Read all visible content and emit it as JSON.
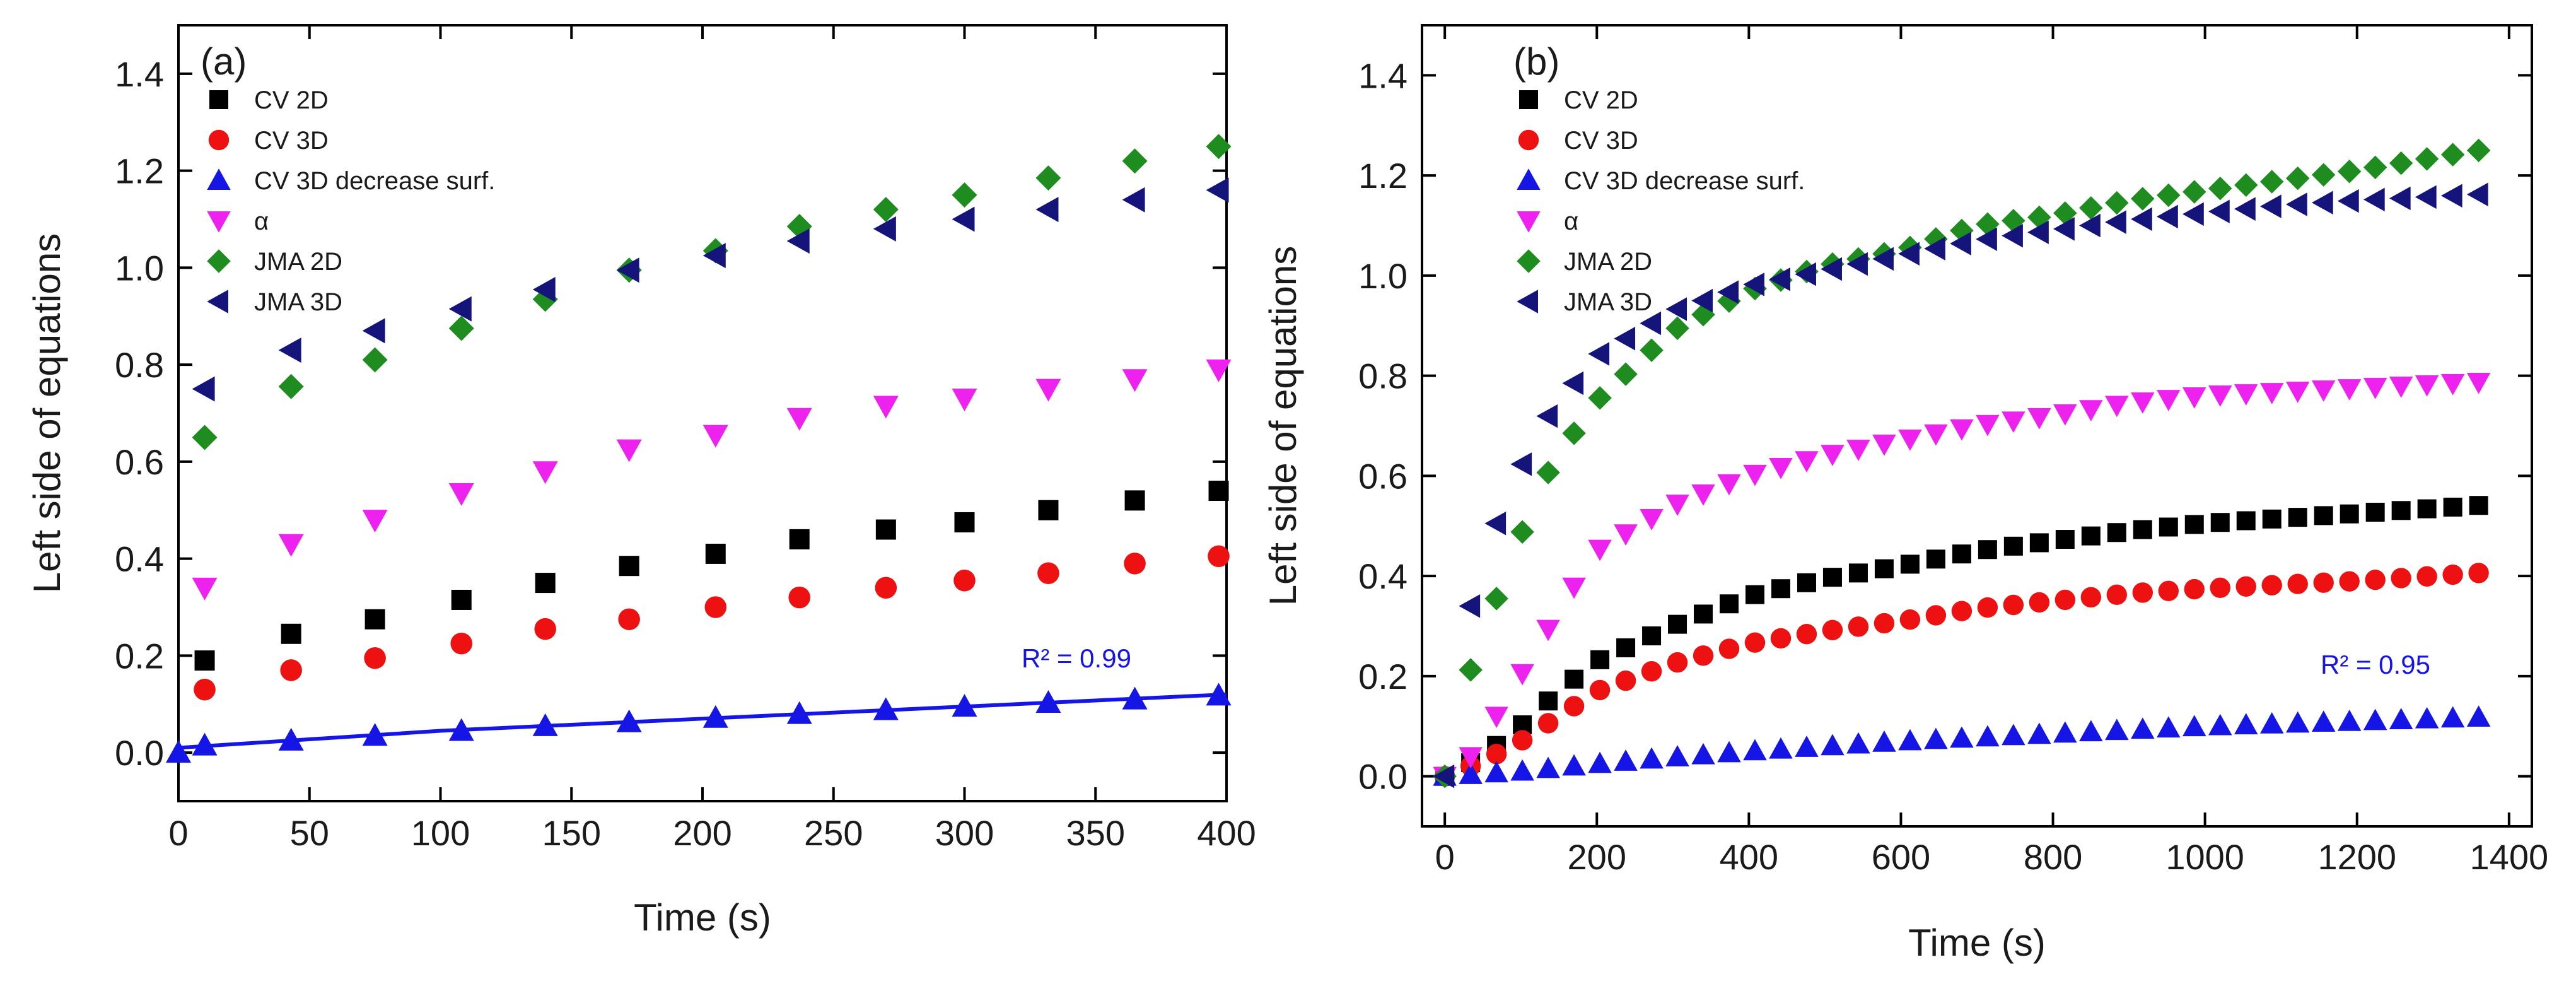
{
  "chart_data": [
    {
      "type": "scatter",
      "panel_label": "(a)",
      "xlabel": "Time (s)",
      "ylabel": "Left side of equations",
      "xlim": [
        0,
        400
      ],
      "ylim": [
        -0.1,
        1.5
      ],
      "xticks": [
        0,
        50,
        100,
        150,
        200,
        250,
        300,
        350,
        400
      ],
      "yticks": [
        0.0,
        0.2,
        0.4,
        0.6,
        0.8,
        1.0,
        1.2,
        1.4
      ],
      "legend_position": "top-left",
      "annotation": {
        "text": "R² = 0.99",
        "color": "#1515e6"
      },
      "fit": {
        "series": "CV 3D decrease surf.",
        "x": [
          0,
          100,
          200,
          300,
          400
        ],
        "y": [
          0.01,
          0.045,
          0.07,
          0.095,
          0.12
        ]
      },
      "series": [
        {
          "name": "CV 2D",
          "marker": "square",
          "color": "#000000",
          "x": [
            10,
            43,
            75,
            108,
            140,
            172,
            205,
            237,
            270,
            300,
            332,
            365,
            397
          ],
          "y": [
            0.19,
            0.245,
            0.275,
            0.315,
            0.35,
            0.385,
            0.41,
            0.44,
            0.46,
            0.475,
            0.5,
            0.52,
            0.54
          ]
        },
        {
          "name": "CV 3D",
          "marker": "circle",
          "color": "#ee1111",
          "x": [
            10,
            43,
            75,
            108,
            140,
            172,
            205,
            237,
            270,
            300,
            332,
            365,
            397
          ],
          "y": [
            0.13,
            0.17,
            0.195,
            0.225,
            0.255,
            0.275,
            0.3,
            0.32,
            0.34,
            0.355,
            0.37,
            0.39,
            0.405
          ]
        },
        {
          "name": "CV 3D decrease surf.",
          "marker": "triangle-up",
          "color": "#1515e6",
          "x": [
            0,
            10,
            43,
            75,
            108,
            140,
            172,
            205,
            237,
            270,
            300,
            332,
            365,
            397
          ],
          "y": [
            0.0,
            0.015,
            0.025,
            0.035,
            0.045,
            0.055,
            0.063,
            0.072,
            0.08,
            0.088,
            0.095,
            0.103,
            0.11,
            0.118
          ]
        },
        {
          "name": "α",
          "marker": "triangle-down",
          "color": "#ee22ee",
          "x": [
            10,
            43,
            75,
            108,
            140,
            172,
            205,
            237,
            270,
            300,
            332,
            365,
            397
          ],
          "y": [
            0.34,
            0.43,
            0.48,
            0.535,
            0.58,
            0.625,
            0.655,
            0.69,
            0.715,
            0.73,
            0.75,
            0.77,
            0.79
          ]
        },
        {
          "name": "JMA 2D",
          "marker": "diamond",
          "color": "#1e8c1e",
          "x": [
            10,
            43,
            75,
            108,
            140,
            172,
            205,
            237,
            270,
            300,
            332,
            365,
            397
          ],
          "y": [
            0.65,
            0.755,
            0.81,
            0.875,
            0.935,
            0.995,
            1.035,
            1.085,
            1.12,
            1.15,
            1.185,
            1.22,
            1.25
          ]
        },
        {
          "name": "JMA 3D",
          "marker": "triangle-left",
          "color": "#14147a",
          "x": [
            10,
            43,
            75,
            108,
            140,
            172,
            205,
            237,
            270,
            300,
            332,
            365,
            397
          ],
          "y": [
            0.75,
            0.83,
            0.87,
            0.915,
            0.955,
            0.995,
            1.025,
            1.055,
            1.08,
            1.1,
            1.12,
            1.14,
            1.16
          ]
        }
      ]
    },
    {
      "type": "scatter",
      "panel_label": "(b)",
      "xlabel": "Time (s)",
      "ylabel": "Left side of equations",
      "xlim": [
        -30,
        1430
      ],
      "ylim": [
        -0.1,
        1.5
      ],
      "xticks": [
        0,
        200,
        400,
        600,
        800,
        1000,
        1200,
        1400
      ],
      "yticks": [
        0.0,
        0.2,
        0.4,
        0.6,
        0.8,
        1.0,
        1.2,
        1.4
      ],
      "legend_position": "top-left",
      "annotation": {
        "text": "R² = 0.95",
        "color": "#1515e6"
      },
      "x_grid": {
        "start": 0,
        "step": 34,
        "count": 41
      },
      "series": [
        {
          "name": "CV 2D",
          "marker": "square",
          "color": "#000000",
          "anchors_x": [
            0,
            50,
            100,
            150,
            200,
            300,
            400,
            500,
            600,
            700,
            800,
            900,
            1000,
            1200,
            1400
          ],
          "anchors_y": [
            0.0,
            0.04,
            0.1,
            0.17,
            0.23,
            0.3,
            0.36,
            0.395,
            0.42,
            0.45,
            0.47,
            0.49,
            0.505,
            0.525,
            0.545
          ]
        },
        {
          "name": "CV 3D",
          "marker": "circle",
          "color": "#ee1111",
          "anchors_x": [
            0,
            50,
            100,
            150,
            200,
            300,
            400,
            500,
            600,
            700,
            800,
            900,
            1000,
            1200,
            1400
          ],
          "anchors_y": [
            0.0,
            0.03,
            0.07,
            0.12,
            0.17,
            0.225,
            0.265,
            0.29,
            0.31,
            0.335,
            0.35,
            0.365,
            0.375,
            0.39,
            0.41
          ]
        },
        {
          "name": "CV 3D decrease surf.",
          "marker": "triangle-up",
          "color": "#1515e6",
          "anchors_x": [
            0,
            100,
            200,
            300,
            400,
            600,
            800,
            1000,
            1200,
            1400
          ],
          "anchors_y": [
            0.0,
            0.01,
            0.025,
            0.038,
            0.05,
            0.07,
            0.085,
            0.1,
            0.11,
            0.12
          ]
        },
        {
          "name": "α",
          "marker": "triangle-down",
          "color": "#ee22ee",
          "anchors_x": [
            0,
            30,
            60,
            100,
            150,
            200,
            300,
            400,
            500,
            600,
            700,
            800,
            900,
            1000,
            1200,
            1400
          ],
          "anchors_y": [
            0.0,
            0.03,
            0.1,
            0.2,
            0.33,
            0.45,
            0.54,
            0.6,
            0.64,
            0.67,
            0.7,
            0.72,
            0.745,
            0.76,
            0.775,
            0.79
          ]
        },
        {
          "name": "JMA 2D",
          "marker": "diamond",
          "color": "#1e8c1e",
          "anchors_x": [
            0,
            40,
            80,
            110,
            140,
            200,
            300,
            400,
            500,
            600,
            700,
            800,
            900,
            1000,
            1100,
            1200,
            1400
          ],
          "anchors_y": [
            0.0,
            0.25,
            0.4,
            0.52,
            0.62,
            0.75,
            0.89,
            0.97,
            1.02,
            1.05,
            1.1,
            1.12,
            1.15,
            1.17,
            1.19,
            1.21,
            1.26
          ]
        },
        {
          "name": "JMA 3D",
          "marker": "triangle-left",
          "color": "#14147a",
          "anchors_x": [
            0,
            40,
            80,
            110,
            140,
            200,
            300,
            400,
            500,
            600,
            700,
            800,
            900,
            1000,
            1100,
            1200,
            1400
          ],
          "anchors_y": [
            0.0,
            0.4,
            0.55,
            0.65,
            0.73,
            0.84,
            0.93,
            0.98,
            1.01,
            1.04,
            1.07,
            1.09,
            1.11,
            1.125,
            1.14,
            1.15,
            1.165
          ]
        }
      ]
    }
  ]
}
